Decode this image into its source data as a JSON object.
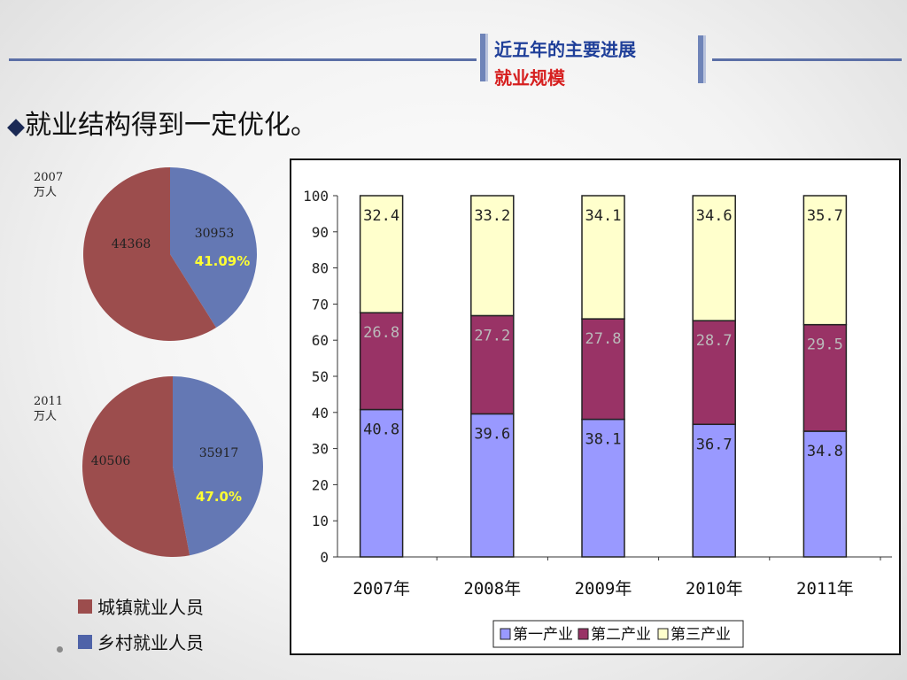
{
  "header": {
    "title_line1": "近五年的主要进展",
    "title_line2": "就业规模"
  },
  "headline": {
    "bullet": "◆",
    "text": "就业结构得到一定优化。"
  },
  "pies": [
    {
      "year": "2007",
      "unit": "万人",
      "urban": {
        "value": 30953,
        "label": "30953",
        "color": "#6478b4"
      },
      "rural": {
        "value": 44368,
        "label": "44368",
        "color": "#9c4d4d"
      },
      "pct": "41.09%"
    },
    {
      "year": "2011",
      "unit": "万人",
      "urban": {
        "value": 35917,
        "label": "35917",
        "color": "#6478b4"
      },
      "rural": {
        "value": 40506,
        "label": "40506",
        "color": "#9c4d4d"
      },
      "pct": "47.0%"
    }
  ],
  "legend": {
    "urban": {
      "label": "城镇就业人员",
      "color": "#9c4d4d"
    },
    "rural": {
      "label": "乡村就业人员",
      "color": "#4f63a8"
    }
  },
  "chart_data": [
    {
      "type": "pie",
      "title": "2007",
      "unit": "万人",
      "slices": [
        {
          "label": "城镇就业人员",
          "value": 30953,
          "percent_label": "41.09%"
        },
        {
          "label": "乡村就业人员",
          "value": 44368
        }
      ]
    },
    {
      "type": "pie",
      "title": "2011",
      "unit": "万人",
      "slices": [
        {
          "label": "城镇就业人员",
          "value": 35917,
          "percent_label": "47.0%"
        },
        {
          "label": "乡村就业人员",
          "value": 40506
        }
      ]
    },
    {
      "type": "bar",
      "stacked": true,
      "categories": [
        "2007年",
        "2008年",
        "2009年",
        "2010年",
        "2011年"
      ],
      "series": [
        {
          "name": "第一产业",
          "values": [
            40.8,
            39.6,
            38.1,
            36.7,
            34.8
          ],
          "color": "#9999ff"
        },
        {
          "name": "第二产业",
          "values": [
            26.8,
            27.2,
            27.8,
            28.7,
            29.5
          ],
          "color": "#993366"
        },
        {
          "name": "第三产业",
          "values": [
            32.4,
            33.2,
            34.1,
            34.6,
            35.7
          ],
          "color": "#ffffcc"
        }
      ],
      "ylim": [
        0,
        100
      ],
      "yticks": [
        0,
        10,
        20,
        30,
        40,
        50,
        60,
        70,
        80,
        90,
        100
      ],
      "label_colors": [
        "#222222",
        "#bbbbbb",
        "#222222"
      ],
      "legend_position": "bottom-center",
      "grid": false
    }
  ]
}
